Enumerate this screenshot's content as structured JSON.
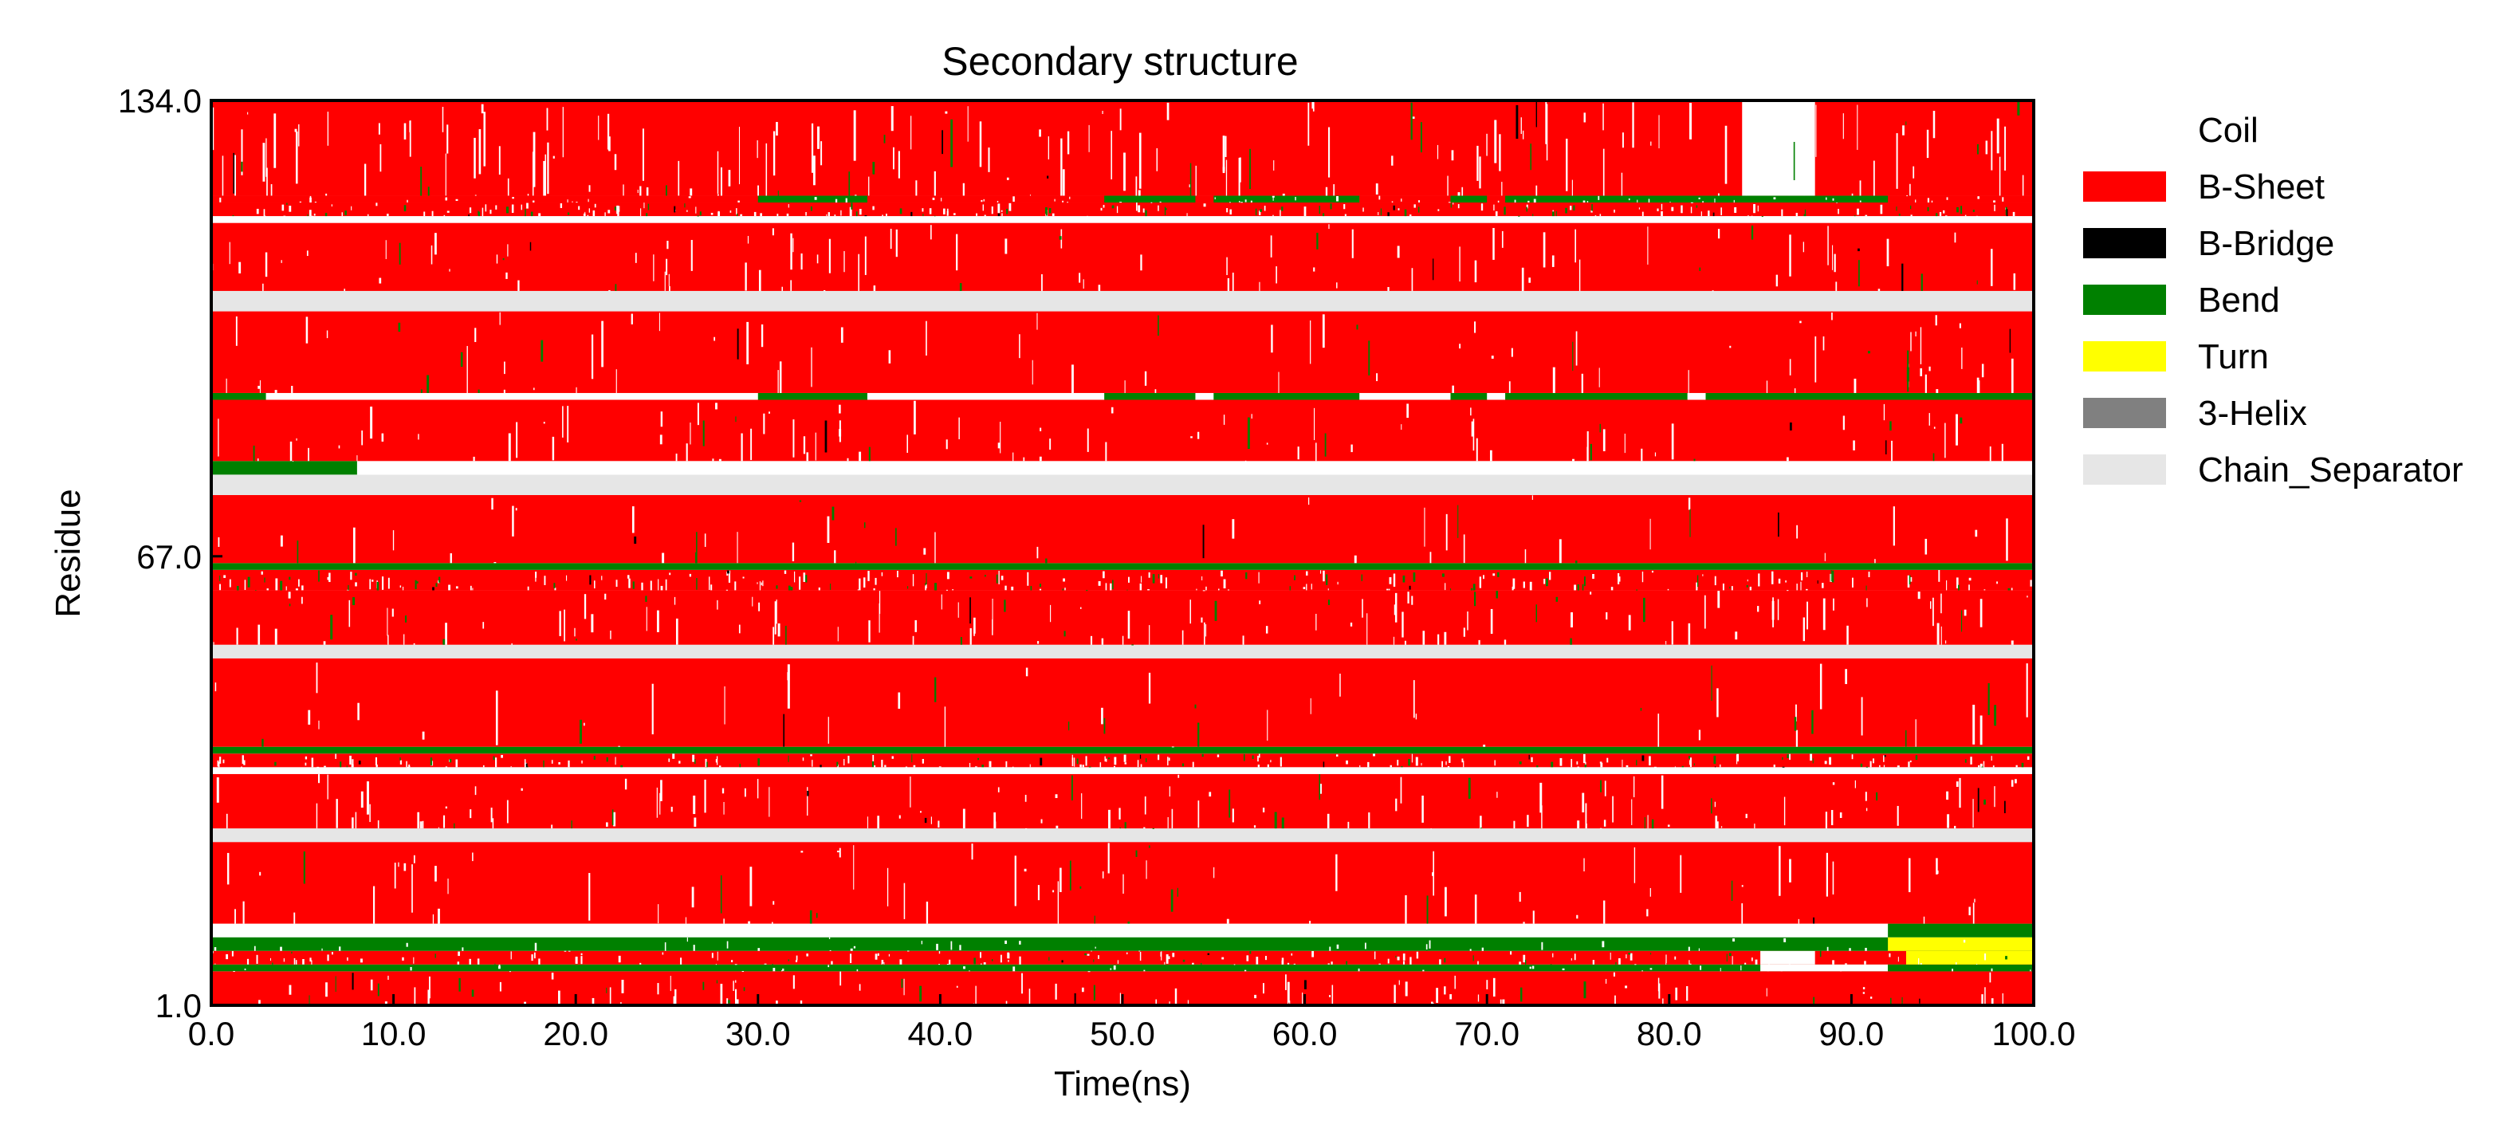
{
  "chart_data": {
    "type": "heatmap",
    "title": "Secondary structure",
    "xlabel": "Time(ns)",
    "ylabel": "Residue",
    "xlim": [
      0,
      100
    ],
    "ylim": [
      1,
      134
    ],
    "x_ticks": [
      "0.0",
      "10.0",
      "20.0",
      "30.0",
      "40.0",
      "50.0",
      "60.0",
      "70.0",
      "80.0",
      "90.0",
      "100.0"
    ],
    "y_ticks": [
      {
        "value": 1,
        "label": "1.0"
      },
      {
        "value": 67,
        "label": "67.0"
      },
      {
        "value": 134,
        "label": "134.0"
      }
    ],
    "legend_position": "right",
    "legend": [
      {
        "label": "Coil",
        "color": "#ffffff"
      },
      {
        "label": "B-Sheet",
        "color": "#ff0000"
      },
      {
        "label": "B-Bridge",
        "color": "#000000"
      },
      {
        "label": "Bend",
        "color": "#008000"
      },
      {
        "label": "Turn",
        "color": "#ffff00"
      },
      {
        "label": "3-Helix",
        "color": "#808080"
      },
      {
        "label": "Chain_Separator",
        "color": "#e6e6e6"
      }
    ],
    "residue_bands": [
      {
        "from": 1,
        "to": 6,
        "state": "B-Sheet",
        "coil_noise": 0.12,
        "green_noise": 0.03
      },
      {
        "from": 6,
        "to": 7,
        "state": "Bend",
        "coil_noise": 0.05,
        "green_noise": 0.0,
        "segments": [
          {
            "x0": 85,
            "x1": 92,
            "state": "Coil"
          },
          {
            "x0": 92,
            "x1": 100,
            "state": "Bend"
          }
        ]
      },
      {
        "from": 7,
        "to": 9,
        "state": "B-Sheet",
        "coil_noise": 0.18,
        "green_noise": 0.04,
        "segments": [
          {
            "x0": 85,
            "x1": 88,
            "state": "Coil"
          },
          {
            "x0": 93,
            "x1": 100,
            "state": "Turn"
          }
        ]
      },
      {
        "from": 9,
        "to": 11,
        "state": "Bend",
        "coil_noise": 0.06,
        "green_noise": 0.0,
        "segments": [
          {
            "x0": 92,
            "x1": 100,
            "state": "Turn"
          }
        ]
      },
      {
        "from": 11,
        "to": 13,
        "state": "Coil",
        "coil_noise": 0.0,
        "green_noise": 0.0,
        "segments": [
          {
            "x0": 92,
            "x1": 100,
            "state": "Bend"
          }
        ]
      },
      {
        "from": 13,
        "to": 25,
        "state": "B-Sheet",
        "coil_noise": 0.1,
        "green_noise": 0.02
      },
      {
        "from": 25,
        "to": 27,
        "state": "Chain_Separator",
        "coil_noise": 0.0,
        "green_noise": 0.0
      },
      {
        "from": 27,
        "to": 35,
        "state": "B-Sheet",
        "coil_noise": 0.16,
        "green_noise": 0.03
      },
      {
        "from": 35,
        "to": 36,
        "state": "Coil",
        "coil_noise": 0.0,
        "green_noise": 0.0
      },
      {
        "from": 36,
        "to": 38,
        "state": "B-Sheet",
        "coil_noise": 0.2,
        "green_noise": 0.08
      },
      {
        "from": 38,
        "to": 39,
        "state": "Bend",
        "coil_noise": 0.0,
        "green_noise": 0.0
      },
      {
        "from": 39,
        "to": 52,
        "state": "B-Sheet",
        "coil_noise": 0.05,
        "green_noise": 0.02
      },
      {
        "from": 52,
        "to": 54,
        "state": "Chain_Separator",
        "coil_noise": 0.0,
        "green_noise": 0.0
      },
      {
        "from": 54,
        "to": 62,
        "state": "B-Sheet",
        "coil_noise": 0.15,
        "green_noise": 0.03
      },
      {
        "from": 62,
        "to": 65,
        "state": "B-Sheet",
        "coil_noise": 0.22,
        "green_noise": 0.09
      },
      {
        "from": 65,
        "to": 66,
        "state": "Bend",
        "coil_noise": 0.0,
        "green_noise": 0.0
      },
      {
        "from": 66,
        "to": 76,
        "state": "B-Sheet",
        "coil_noise": 0.05,
        "green_noise": 0.02
      },
      {
        "from": 76,
        "to": 79,
        "state": "Chain_Separator",
        "coil_noise": 0.0,
        "green_noise": 0.0
      },
      {
        "from": 79,
        "to": 81,
        "state": "Coil",
        "coil_noise": 0.0,
        "green_noise": 0.0,
        "segments": [
          {
            "x0": 0,
            "x1": 8,
            "state": "Bend"
          }
        ]
      },
      {
        "from": 81,
        "to": 90,
        "state": "B-Sheet",
        "coil_noise": 0.12,
        "green_noise": 0.02
      },
      {
        "from": 90,
        "to": 91,
        "state": "Bend",
        "coil_noise": 0.0,
        "green_noise": 0.0,
        "segments": [
          {
            "x0": 3,
            "x1": 30,
            "state": "Coil"
          },
          {
            "x0": 36,
            "x1": 49,
            "state": "Coil"
          },
          {
            "x0": 54,
            "x1": 55,
            "state": "Coil"
          },
          {
            "x0": 63,
            "x1": 68,
            "state": "Coil"
          },
          {
            "x0": 70,
            "x1": 71,
            "state": "Coil"
          },
          {
            "x0": 81,
            "x1": 82,
            "state": "Coil"
          }
        ]
      },
      {
        "from": 91,
        "to": 103,
        "state": "B-Sheet",
        "coil_noise": 0.1,
        "green_noise": 0.02
      },
      {
        "from": 103,
        "to": 106,
        "state": "Chain_Separator",
        "coil_noise": 0.0,
        "green_noise": 0.0
      },
      {
        "from": 106,
        "to": 116,
        "state": "B-Sheet",
        "coil_noise": 0.12,
        "green_noise": 0.02
      },
      {
        "from": 116,
        "to": 117,
        "state": "Coil",
        "coil_noise": 0.0,
        "green_noise": 0.0
      },
      {
        "from": 117,
        "to": 119,
        "state": "B-Sheet",
        "coil_noise": 0.2,
        "green_noise": 0.1
      },
      {
        "from": 119,
        "to": 120,
        "state": "B-Sheet",
        "coil_noise": 0.1,
        "green_noise": 0.0,
        "segments": [
          {
            "x0": 30,
            "x1": 36,
            "state": "Bend"
          },
          {
            "x0": 49,
            "x1": 54,
            "state": "Bend"
          },
          {
            "x0": 55,
            "x1": 63,
            "state": "Bend"
          },
          {
            "x0": 68,
            "x1": 70,
            "state": "Bend"
          },
          {
            "x0": 71,
            "x1": 92,
            "state": "Bend"
          }
        ]
      },
      {
        "from": 120,
        "to": 134,
        "state": "B-Sheet",
        "coil_noise": 0.22,
        "green_noise": 0.03,
        "segments": [
          {
            "x0": 84,
            "x1": 88,
            "state": "Coil"
          }
        ]
      }
    ]
  }
}
